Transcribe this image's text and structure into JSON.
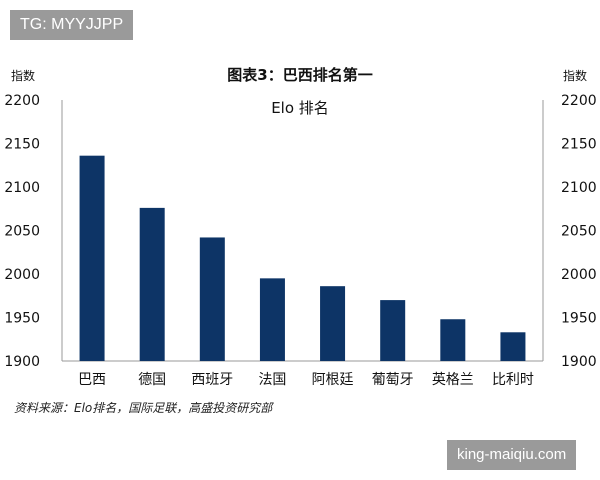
{
  "watermarks": {
    "top": "TG: MYYJJPP",
    "bottom": "king-maiqiu.com"
  },
  "colors": {
    "bar": "#0d3466",
    "text": "#111111",
    "watermark_bg": "#9a9a9a"
  },
  "chart_data": {
    "type": "bar",
    "title": "图表3：巴西排名第一",
    "subtitle": "Elo 排名",
    "ylabel_left": "指数",
    "ylabel_right": "指数",
    "categories": [
      "巴西",
      "德国",
      "西班牙",
      "法国",
      "阿根廷",
      "葡萄牙",
      "英格兰",
      "比利时"
    ],
    "values": [
      2136,
      2076,
      2042,
      1995,
      1986,
      1970,
      1948,
      1933
    ],
    "ylim": [
      1900,
      2200
    ],
    "yticks": [
      1900,
      1950,
      2000,
      2050,
      2100,
      2150,
      2200
    ],
    "grid": false,
    "legend": "none"
  },
  "source": "资料来源：Elo排名，国际足联，高盛投资研究部"
}
